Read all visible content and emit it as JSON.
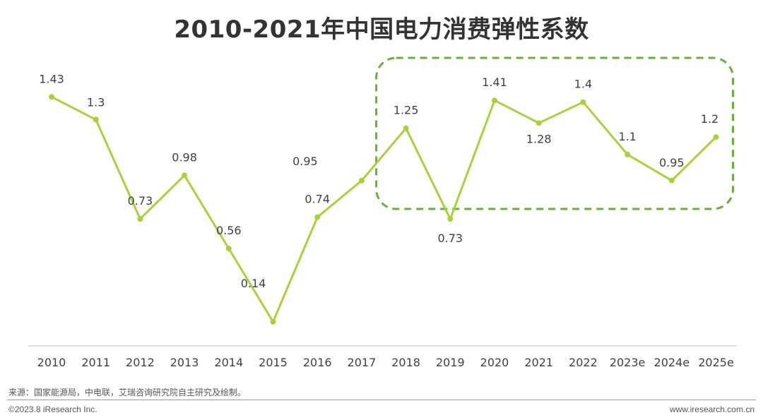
{
  "title": "2010-2021年中国电力消费弹性系数",
  "chart_data": {
    "type": "line",
    "title": "2010-2021年中国电力消费弹性系数",
    "categories": [
      "2010",
      "2011",
      "2012",
      "2013",
      "2014",
      "2015",
      "2016",
      "2017",
      "2018",
      "2019",
      "2020",
      "2021",
      "2022",
      "2023e",
      "2024e",
      "2025e"
    ],
    "values": [
      1.43,
      1.3,
      0.73,
      0.98,
      0.56,
      0.14,
      0.74,
      0.95,
      1.25,
      0.73,
      1.41,
      1.28,
      1.4,
      1.1,
      0.95,
      1.2
    ],
    "labels": [
      "1.43",
      "1.3",
      "0.73",
      "0.98",
      "0.56",
      "0.14",
      "0.74",
      "0.95",
      "1.25",
      "0.73",
      "1.41",
      "1.28",
      "1.4",
      "1.1",
      "0.95",
      "1.2"
    ],
    "ylim": [
      0,
      1.6
    ],
    "xlabel": "",
    "ylabel": "",
    "grid": false,
    "highlight_range": [
      "2018",
      "2025e"
    ],
    "colors": {
      "line": "#a8d23c",
      "highlight_box": "#6aae3c",
      "axis": "#bfbfbf"
    }
  },
  "footer": {
    "source": "来源：国家能源局，中电联，艾瑞咨询研究院自主研究及绘制。",
    "copyright": "©2023.8 iResearch Inc.",
    "website": "www.iresearch.com.cn"
  }
}
